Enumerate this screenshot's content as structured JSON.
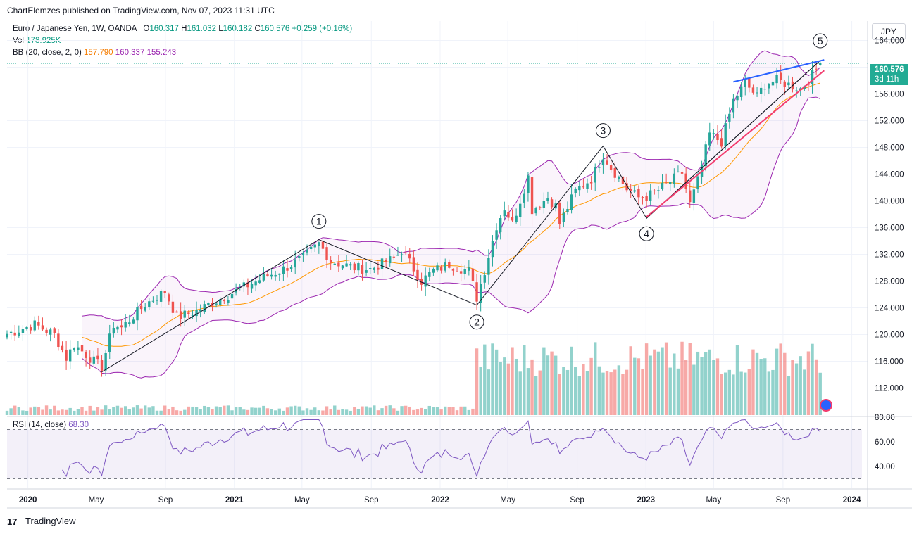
{
  "header": {
    "published": "ChartElemzes published on TradingView.com, Nov 07, 2023 11:31 UTC"
  },
  "legend": {
    "symbol": "Euro / Japanese Yen, 1W, OANDA",
    "o_label": "O",
    "o": "160.317",
    "h_label": "H",
    "h": "161.032",
    "l_label": "L",
    "l": "160.182",
    "c_label": "C",
    "c": "160.576",
    "change": "+0.259 (+0.16%)",
    "vol_label": "Vol",
    "vol": "178.925K",
    "bb_label": "BB (20, close, 2, 0)",
    "bb_basis": "157.790",
    "bb_upper": "160.337",
    "bb_lower": "155.243"
  },
  "currency": "JPY",
  "price_tag": {
    "price": "160.576",
    "countdown": "3d 11h"
  },
  "rsi_legend": {
    "label": "RSI (14, close)",
    "value": "68.30"
  },
  "footer": {
    "brand": "TradingView",
    "logo_text": "17"
  },
  "colors": {
    "up": "#26a69a",
    "down": "#ef5350",
    "bb_band": "#9c27b0",
    "bb_basis": "#ff9800",
    "rsi": "#7e57c2",
    "wave": "#131722",
    "wedge_top": "#2962ff",
    "wedge_bottom": "#f23c6e"
  },
  "chart_data": {
    "type": "candlestick",
    "title": "Euro / Japanese Yen, 1W, OANDA",
    "ylabel": "JPY",
    "ylim": [
      108,
      166
    ],
    "price_ticks": [
      "164.000",
      "160.000",
      "156.000",
      "152.000",
      "148.000",
      "144.000",
      "140.000",
      "136.000",
      "132.000",
      "128.000",
      "124.000",
      "120.000",
      "116.000",
      "112.000"
    ],
    "price_tick_values": [
      164,
      160,
      156,
      152,
      148,
      144,
      140,
      136,
      132,
      128,
      124,
      120,
      116,
      112
    ],
    "time_ticks": [
      "2020",
      "May",
      "Sep",
      "2021",
      "May",
      "Sep",
      "2022",
      "May",
      "Sep",
      "2023",
      "May",
      "Sep",
      "2024"
    ],
    "time_tick_dates": [
      "2020-01-01",
      "2020-05-01",
      "2020-09-01",
      "2021-01-01",
      "2021-05-01",
      "2021-09-01",
      "2022-01-01",
      "2022-05-01",
      "2022-09-01",
      "2023-01-01",
      "2023-05-01",
      "2023-09-01",
      "2024-01-01"
    ],
    "close_anchors": [
      [
        "2019-11-25",
        120.1
      ],
      [
        "2020-01-13",
        121.5
      ],
      [
        "2020-02-17",
        120.0
      ],
      [
        "2020-03-09",
        116.5
      ],
      [
        "2020-03-23",
        118.5
      ],
      [
        "2020-04-27",
        116.0
      ],
      [
        "2020-05-11",
        115.2
      ],
      [
        "2020-06-01",
        121.5
      ],
      [
        "2020-06-15",
        121.0
      ],
      [
        "2020-07-27",
        124.5
      ],
      [
        "2020-08-31",
        126.5
      ],
      [
        "2020-09-21",
        122.6
      ],
      [
        "2020-10-26",
        123.5
      ],
      [
        "2020-11-23",
        124.8
      ],
      [
        "2021-01-04",
        126.5
      ],
      [
        "2021-02-22",
        128.5
      ],
      [
        "2021-03-29",
        129.8
      ],
      [
        "2021-05-03",
        131.5
      ],
      [
        "2021-05-31",
        133.6
      ],
      [
        "2021-06-21",
        131.0
      ],
      [
        "2021-08-02",
        130.0
      ],
      [
        "2021-08-30",
        129.8
      ],
      [
        "2021-10-11",
        131.4
      ],
      [
        "2021-10-25",
        132.6
      ],
      [
        "2021-11-29",
        128.0
      ],
      [
        "2021-12-20",
        129.5
      ],
      [
        "2022-01-17",
        130.5
      ],
      [
        "2022-02-21",
        129.5
      ],
      [
        "2022-03-07",
        125.5
      ],
      [
        "2022-03-21",
        129.6
      ],
      [
        "2022-04-11",
        136.3
      ],
      [
        "2022-04-25",
        139.0
      ],
      [
        "2022-05-09",
        136.6
      ],
      [
        "2022-06-06",
        143.6
      ],
      [
        "2022-06-13",
        138.7
      ],
      [
        "2022-07-11",
        140.5
      ],
      [
        "2022-07-25",
        139.2
      ],
      [
        "2022-08-01",
        136.6
      ],
      [
        "2022-08-29",
        141.5
      ],
      [
        "2022-09-26",
        143.3
      ],
      [
        "2022-10-17",
        146.9
      ],
      [
        "2022-10-31",
        145.0
      ],
      [
        "2022-11-28",
        141.8
      ],
      [
        "2022-12-19",
        140.5
      ],
      [
        "2023-01-02",
        140.6
      ],
      [
        "2023-01-23",
        141.6
      ],
      [
        "2023-03-06",
        144.2
      ],
      [
        "2023-03-20",
        139.5
      ],
      [
        "2023-04-03",
        143.0
      ],
      [
        "2023-04-24",
        150.0
      ],
      [
        "2023-05-15",
        148.8
      ],
      [
        "2023-06-05",
        155.0
      ],
      [
        "2023-06-26",
        157.6
      ],
      [
        "2023-07-17",
        155.6
      ],
      [
        "2023-07-31",
        157.5
      ],
      [
        "2023-08-21",
        158.1
      ],
      [
        "2023-09-11",
        157.4
      ],
      [
        "2023-10-02",
        156.8
      ],
      [
        "2023-10-23",
        158.8
      ],
      [
        "2023-11-06",
        160.576
      ]
    ],
    "last_bar": {
      "date": "2023-11-06",
      "open": 160.317,
      "high": 161.032,
      "low": 160.182,
      "close": 160.576,
      "volume": "178.925K"
    },
    "bollinger": {
      "length": 20,
      "mult": 2,
      "basis": 157.79,
      "upper": 160.337,
      "lower": 155.243
    },
    "rsi": {
      "length": 14,
      "last": 68.3,
      "levels": [
        70,
        50,
        30
      ],
      "tick_labels": [
        "80.00",
        "60.00",
        "40.00"
      ],
      "tick_values": [
        80,
        60,
        40
      ]
    },
    "volume": {
      "note": "tick volume; much larger from 2022-03 onward"
    },
    "elliott_waves": [
      {
        "label": "1",
        "date": "2021-05-31",
        "price": 134.2
      },
      {
        "label": "2",
        "date": "2022-03-07",
        "price": 124.4
      },
      {
        "label": "3",
        "date": "2022-10-17",
        "price": 148.2
      },
      {
        "label": "4",
        "date": "2023-01-02",
        "price": 137.4
      },
      {
        "label": "5",
        "date": "2023-11-06",
        "price": 161.0
      }
    ],
    "wave_path": [
      [
        "2020-05-11",
        114.4
      ],
      [
        "2021-05-31",
        134.2
      ],
      [
        "2022-03-07",
        124.4
      ],
      [
        "2022-10-17",
        148.2
      ],
      [
        "2023-01-02",
        137.4
      ],
      [
        "2023-11-06",
        161.0
      ]
    ],
    "channel_line": [
      [
        "2023-01-02",
        137.4
      ],
      [
        "2023-11-06",
        161.0
      ]
    ],
    "wedge_upper": [
      [
        "2023-06-05",
        157.8
      ],
      [
        "2023-11-13",
        161.1
      ]
    ],
    "wedge_lower": [
      [
        "2023-01-02",
        137.6
      ],
      [
        "2023-11-13",
        159.5
      ]
    ]
  }
}
